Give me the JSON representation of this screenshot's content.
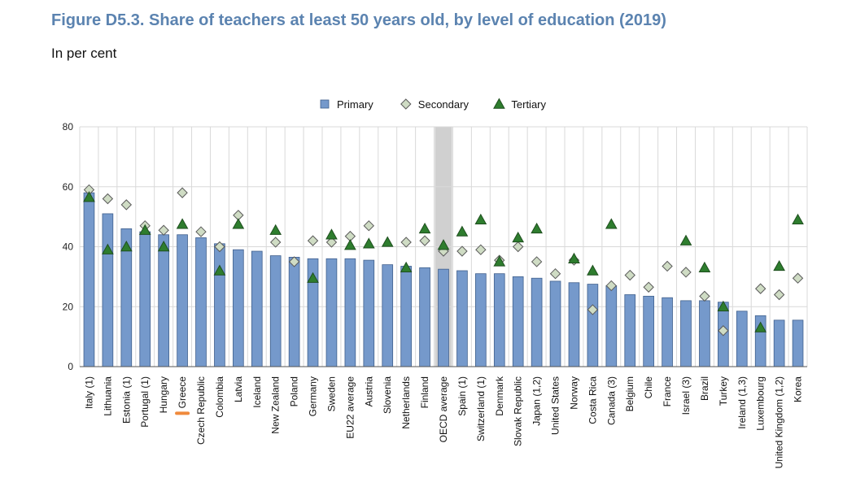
{
  "title": "Figure D5.3. Share of teachers at least 50 years old, by level of education (2019)",
  "subtitle": "In per cent",
  "colors": {
    "title": "#5b83b0",
    "primary_fill": "#7599cb",
    "primary_stroke": "#3f5f8c",
    "secondary_fill": "#cfdcc4",
    "secondary_stroke": "#5a5a5a",
    "tertiary_fill": "#2e7d2e",
    "tertiary_stroke": "#1f4f1f",
    "oecd_band": "#d0d0d0",
    "greece_marker": "#f08a3c",
    "grid": "#d9d9d9"
  },
  "chart_data": {
    "type": "bar",
    "ylim": [
      0,
      80
    ],
    "yticks": [
      0,
      20,
      40,
      60,
      80
    ],
    "grid": true,
    "legend_position": "top-center",
    "highlight": {
      "band_category": "OECD average",
      "marked_category": "Greece"
    },
    "categories": [
      "Italy (1)",
      "Lithuania",
      "Estonia (1)",
      "Portugal (1)",
      "Hungary",
      "Greece",
      "Czech Republic",
      "Colombia",
      "Latvia",
      "Iceland",
      "New Zealand",
      "Poland",
      "Germany",
      "Sweden",
      "EU22 average",
      "Austria",
      "Slovenia",
      "Netherlands",
      "Finland",
      "OECD average",
      "Spain (1)",
      "Switzerland (1)",
      "Denmark",
      "Slovak Republic",
      "Japan (1,2)",
      "United States",
      "Norway",
      "Costa Rica",
      "Canada (3)",
      "Belgium",
      "Chile",
      "France",
      "Israel (3)",
      "Brazil",
      "Turkey",
      "Ireland (1,3)",
      "Luxembourg",
      "United Kingdom (1,2)",
      "Korea"
    ],
    "series": [
      {
        "name": "Primary",
        "kind": "bar",
        "values": [
          58,
          51,
          46,
          45,
          44,
          44,
          43,
          41,
          39,
          38.5,
          37,
          36.5,
          36,
          36,
          36,
          35.5,
          34,
          33.5,
          33,
          32.5,
          32,
          31,
          31,
          30,
          29.5,
          28.5,
          28,
          27.5,
          27,
          24,
          23.5,
          23,
          22,
          22,
          21.5,
          18.5,
          17,
          15.5,
          15.5
        ]
      },
      {
        "name": "Secondary",
        "kind": "diamond",
        "values": [
          59,
          56,
          54,
          47,
          45.5,
          58,
          45,
          40,
          50.5,
          null,
          41.5,
          35,
          42,
          41.5,
          43.5,
          47,
          null,
          41.5,
          42,
          38.5,
          38.5,
          39,
          35.5,
          40,
          35,
          31,
          35.5,
          19,
          27,
          30.5,
          26.5,
          33.5,
          31.5,
          23.5,
          12,
          null,
          26,
          24,
          29.5
        ]
      },
      {
        "name": "Tertiary",
        "kind": "triangle",
        "values": [
          56.5,
          39,
          40,
          45.5,
          40,
          47.5,
          null,
          32,
          47.5,
          null,
          45.5,
          null,
          29.5,
          44,
          40.5,
          41,
          41.5,
          33,
          46,
          40.5,
          45,
          49,
          35,
          43,
          46,
          null,
          36,
          32,
          47.5,
          null,
          null,
          null,
          42,
          33,
          20,
          null,
          13,
          33.5,
          49
        ]
      }
    ]
  }
}
